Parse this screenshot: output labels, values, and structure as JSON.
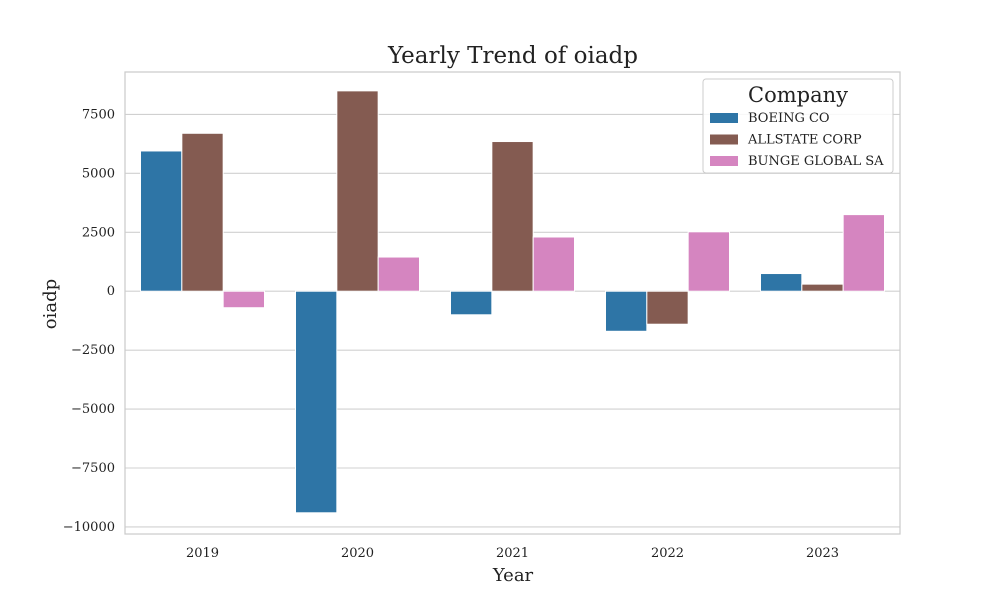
{
  "chart_data": {
    "type": "bar",
    "title": "Yearly Trend of oiadp",
    "xlabel": "Year",
    "ylabel": "oiadp",
    "categories": [
      "2019",
      "2020",
      "2021",
      "2022",
      "2023"
    ],
    "series": [
      {
        "name": "BOEING CO",
        "color": "#2e75a6",
        "values": [
          5950,
          -9400,
          -1000,
          -1700,
          750
        ]
      },
      {
        "name": "ALLSTATE CORP",
        "color": "#845b51",
        "values": [
          6700,
          8500,
          6350,
          -1400,
          300
        ]
      },
      {
        "name": "BUNGE GLOBAL SA",
        "color": "#d585c0",
        "values": [
          -700,
          1450,
          2300,
          2520,
          3250
        ]
      }
    ],
    "ylim": [
      -10300,
      9300
    ],
    "yticks": [
      -10000,
      -7500,
      -5000,
      -2500,
      0,
      2500,
      5000,
      7500
    ],
    "ytick_labels": [
      "−10000",
      "−7500",
      "−5000",
      "−2500",
      "0",
      "2500",
      "5000",
      "7500"
    ],
    "grid": true,
    "legend": {
      "title": "Company",
      "placement": "top-right"
    }
  }
}
